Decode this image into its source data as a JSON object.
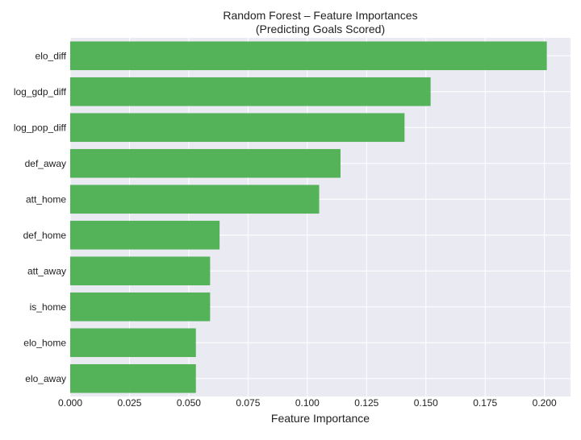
{
  "chart_data": {
    "type": "bar",
    "orientation": "horizontal",
    "title": "Random Forest – Feature Importances",
    "subtitle": "(Predicting Goals Scored)",
    "xlabel": "Feature Importance",
    "ylabel": "",
    "categories": [
      "elo_diff",
      "log_gdp_diff",
      "log_pop_diff",
      "def_away",
      "att_home",
      "def_home",
      "att_away",
      "is_home",
      "elo_home",
      "elo_away"
    ],
    "values": [
      0.201,
      0.152,
      0.141,
      0.114,
      0.105,
      0.063,
      0.059,
      0.059,
      0.053,
      0.053
    ],
    "xlim": [
      0,
      0.211
    ],
    "xticks": [
      "0.000",
      "0.025",
      "0.050",
      "0.075",
      "0.100",
      "0.125",
      "0.150",
      "0.175",
      "0.200"
    ],
    "bar_color": "#4CAF50",
    "plot_background": "#EAEAF2",
    "grid": true
  }
}
